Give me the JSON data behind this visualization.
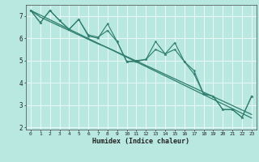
{
  "xlabel": "Humidex (Indice chaleur)",
  "x_values": [
    0,
    1,
    2,
    3,
    4,
    5,
    6,
    7,
    8,
    9,
    10,
    11,
    12,
    13,
    14,
    15,
    16,
    17,
    18,
    19,
    20,
    21,
    22,
    23
  ],
  "line1_y": [
    7.25,
    6.7,
    7.25,
    6.8,
    6.4,
    6.85,
    6.1,
    6.0,
    6.65,
    5.85,
    4.95,
    4.95,
    5.05,
    5.85,
    5.3,
    5.8,
    4.95,
    4.4,
    3.5,
    3.4,
    2.8,
    2.8,
    2.45,
    3.4
  ],
  "line2_y": [
    7.25,
    6.7,
    7.25,
    6.8,
    6.4,
    6.85,
    6.15,
    6.05,
    6.35,
    5.85,
    4.95,
    5.0,
    5.05,
    5.5,
    5.3,
    5.5,
    4.95,
    4.55,
    3.5,
    3.4,
    2.8,
    2.8,
    2.45,
    3.4
  ],
  "trend1_y": [
    7.25,
    7.04,
    6.83,
    6.62,
    6.41,
    6.2,
    5.99,
    5.78,
    5.57,
    5.36,
    5.15,
    4.94,
    4.73,
    4.52,
    4.31,
    4.1,
    3.89,
    3.68,
    3.47,
    3.26,
    3.05,
    2.84,
    2.63,
    2.42
  ],
  "trend2_y": [
    7.25,
    6.95,
    6.75,
    6.55,
    6.35,
    6.15,
    5.95,
    5.75,
    5.58,
    5.38,
    5.18,
    4.98,
    4.78,
    4.58,
    4.38,
    4.18,
    3.98,
    3.78,
    3.58,
    3.38,
    3.18,
    2.98,
    2.78,
    2.58
  ],
  "bg_color": "#b8e8e0",
  "line_color": "#2e7d6e",
  "grid_color": "#e8f8f5",
  "ylim": [
    1.9,
    7.5
  ],
  "xlim": [
    -0.5,
    23.5
  ],
  "yticks": [
    2,
    3,
    4,
    5,
    6,
    7
  ]
}
